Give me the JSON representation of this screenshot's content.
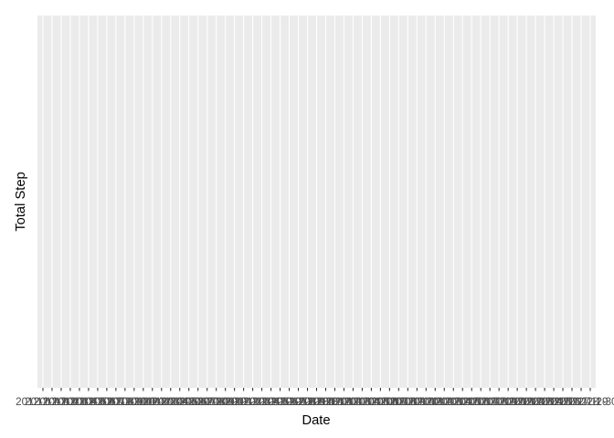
{
  "chart_data": {
    "type": "bar",
    "xlabel": "Date",
    "ylabel": "Total Step",
    "categories": [
      "2012-10-01",
      "2012-10-02",
      "2012-10-03",
      "2012-10-04",
      "2012-10-05",
      "2012-10-06",
      "2012-10-07",
      "2012-10-08",
      "2012-10-09",
      "2012-10-10",
      "2012-10-11",
      "2012-10-12",
      "2012-10-13",
      "2012-10-14",
      "2012-10-15",
      "2012-10-16",
      "2012-10-17",
      "2012-10-18",
      "2012-10-19",
      "2012-10-20",
      "2012-10-21",
      "2012-10-22",
      "2012-10-23",
      "2012-10-24",
      "2012-10-25",
      "2012-10-26",
      "2012-10-27",
      "2012-10-28",
      "2012-10-29",
      "2012-10-30",
      "2012-10-31",
      "2012-11-01",
      "2012-11-02",
      "2012-11-03",
      "2012-11-04",
      "2012-11-05",
      "2012-11-06",
      "2012-11-07",
      "2012-11-08",
      "2012-11-09",
      "2012-11-10",
      "2012-11-11",
      "2012-11-12",
      "2012-11-13",
      "2012-11-14",
      "2012-11-15",
      "2012-11-16",
      "2012-11-17",
      "2012-11-18",
      "2012-11-19",
      "2012-11-20",
      "2012-11-21",
      "2012-11-22",
      "2012-11-23",
      "2012-11-24",
      "2012-11-25",
      "2012-11-26",
      "2012-11-27",
      "2012-11-28",
      "2012-11-29",
      "2012-11-30"
    ],
    "grid": true
  }
}
